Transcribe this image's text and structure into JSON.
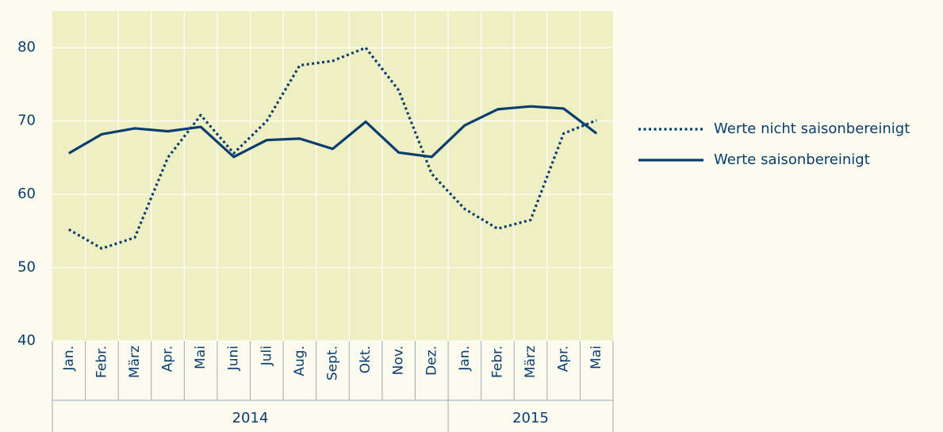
{
  "chart_data": {
    "type": "line",
    "categories": [
      "Jan.",
      "Febr.",
      "März",
      "Apr.",
      "Mai",
      "Juni",
      "Juli",
      "Aug.",
      "Sept.",
      "Okt.",
      "Nov.",
      "Dez.",
      "Jan.",
      "Febr.",
      "März",
      "Apr.",
      "Mai"
    ],
    "category_years": [
      "2014",
      "2014",
      "2014",
      "2014",
      "2014",
      "2014",
      "2014",
      "2014",
      "2014",
      "2014",
      "2014",
      "2014",
      "2015",
      "2015",
      "2015",
      "2015",
      "2015"
    ],
    "series": [
      {
        "name": "Werte nicht saisonbereinigt",
        "color": "#0b3d6f",
        "style": "dotted",
        "values": [
          55.2,
          52.6,
          54.1,
          65.0,
          70.8,
          65.6,
          70.0,
          77.6,
          78.2,
          80.0,
          74.2,
          62.8,
          58.0,
          55.3,
          56.5,
          68.3,
          70.1
        ]
      },
      {
        "name": "Werte saisonbereinigt",
        "color": "#0b3d6f",
        "style": "solid",
        "values": [
          65.6,
          68.2,
          69.0,
          68.6,
          69.2,
          65.1,
          67.4,
          67.6,
          66.2,
          69.9,
          65.7,
          65.1,
          69.4,
          71.6,
          72.0,
          71.7,
          68.3
        ]
      }
    ],
    "ylim": [
      40,
      85
    ],
    "yticks": [
      40,
      50,
      60,
      70,
      80
    ],
    "grid": true,
    "legend": "right"
  }
}
